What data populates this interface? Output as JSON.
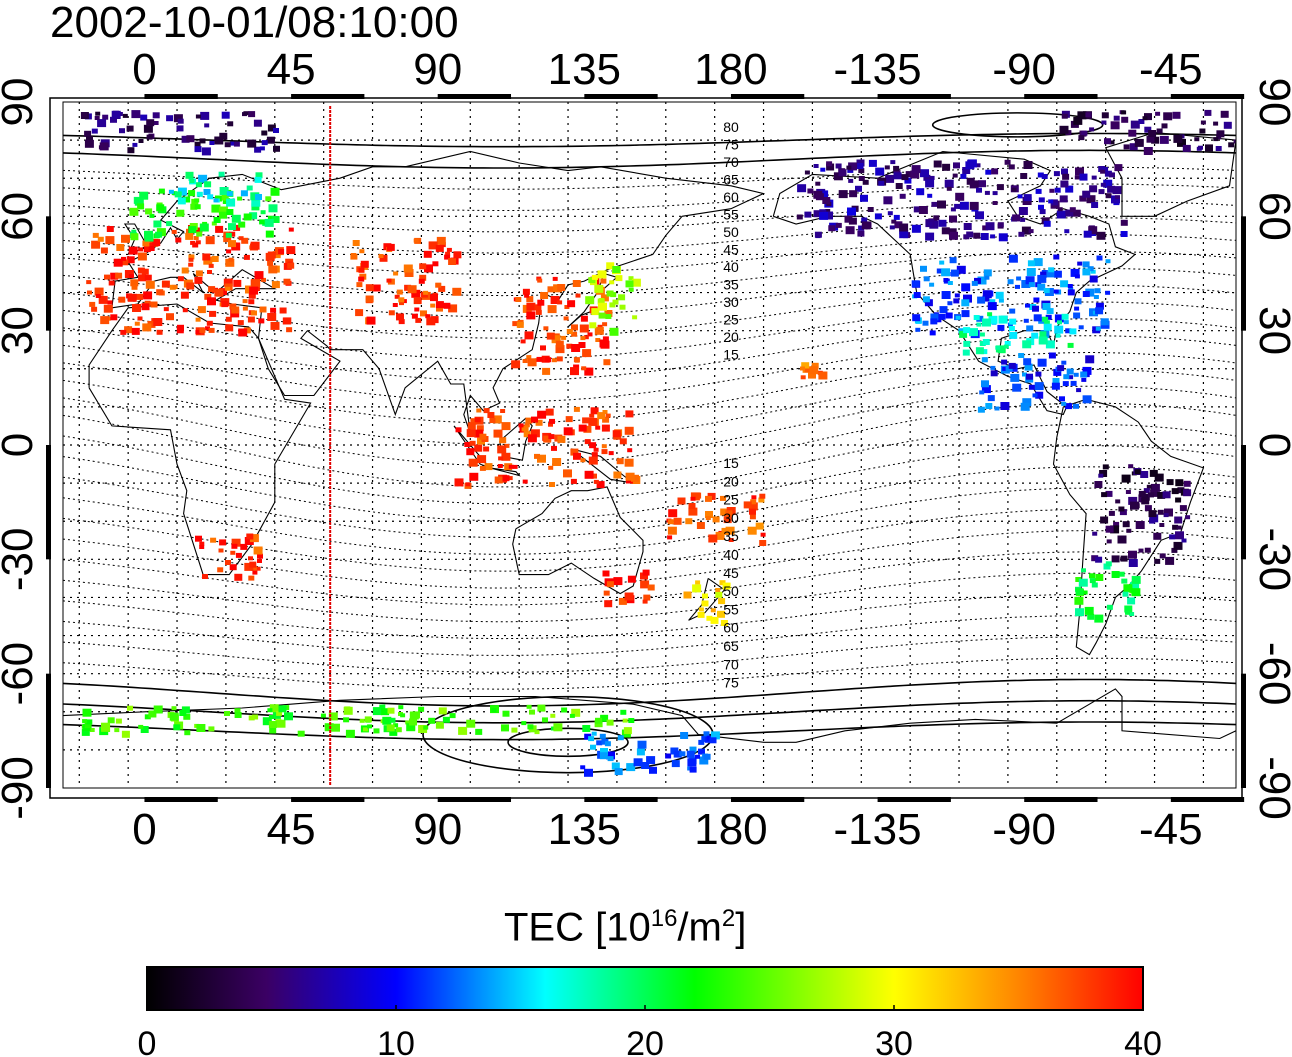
{
  "title": "2002-10-01/08:10:00",
  "map": {
    "lon_range": [
      -25,
      335
    ],
    "lat_range": [
      -90,
      90
    ],
    "top_lon_ticks": [
      {
        "lon": 0,
        "label": "0"
      },
      {
        "lon": 45,
        "label": "45"
      },
      {
        "lon": 90,
        "label": "90"
      },
      {
        "lon": 135,
        "label": "135"
      },
      {
        "lon": 180,
        "label": "180"
      },
      {
        "lon": 225,
        "label": "-135"
      },
      {
        "lon": 270,
        "label": "-90"
      },
      {
        "lon": 315,
        "label": "-45"
      }
    ],
    "bottom_lon_ticks": [
      {
        "lon": 0,
        "label": "0"
      },
      {
        "lon": 45,
        "label": "45"
      },
      {
        "lon": 90,
        "label": "90"
      },
      {
        "lon": 135,
        "label": "135"
      },
      {
        "lon": 180,
        "label": "180"
      },
      {
        "lon": 225,
        "label": "-135"
      },
      {
        "lon": 270,
        "label": "-90"
      },
      {
        "lon": 315,
        "label": "-45"
      }
    ],
    "lat_ticks": [
      {
        "lat": 90,
        "label": "90"
      },
      {
        "lat": 60,
        "label": "60"
      },
      {
        "lat": 30,
        "label": "30"
      },
      {
        "lat": 0,
        "label": "0"
      },
      {
        "lat": -30,
        "label": "-30"
      },
      {
        "lat": -60,
        "label": "-60"
      },
      {
        "lat": -90,
        "label": "-90"
      }
    ],
    "terminator_lon": 57,
    "contour_labels_north": [
      "80",
      "75",
      "70",
      "65",
      "60",
      "55",
      "50",
      "45",
      "40",
      "35",
      "30",
      "25",
      "20",
      "15"
    ],
    "contour_labels_south": [
      "15",
      "20",
      "25",
      "30",
      "35",
      "40",
      "45",
      "50",
      "55",
      "60",
      "65",
      "70",
      "75"
    ],
    "tec_regions": [
      {
        "name": "europe",
        "lon": [
          -18,
          45
        ],
        "lat": [
          30,
          58
        ],
        "tec": 38
      },
      {
        "name": "europe-north-fringe",
        "lon": [
          -5,
          40
        ],
        "lat": [
          55,
          68
        ],
        "tec": 22
      },
      {
        "name": "scandinavia",
        "lon": [
          5,
          35
        ],
        "lat": [
          64,
          72
        ],
        "tec": 17
      },
      {
        "name": "middle-east",
        "lon": [
          62,
          95
        ],
        "lat": [
          33,
          55
        ],
        "tec": 38
      },
      {
        "name": "asia-east",
        "lon": [
          112,
          142
        ],
        "lat": [
          20,
          45
        ],
        "tec": 38
      },
      {
        "name": "japan",
        "lon": [
          135,
          150
        ],
        "lat": [
          30,
          48
        ],
        "tec": 27
      },
      {
        "name": "indonesia",
        "lon": [
          95,
          150
        ],
        "lat": [
          -10,
          10
        ],
        "tec": 38
      },
      {
        "name": "africa-south",
        "lon": [
          15,
          35
        ],
        "lat": [
          -35,
          -22
        ],
        "tec": 38
      },
      {
        "name": "australia-se",
        "lon": [
          140,
          155
        ],
        "lat": [
          -42,
          -32
        ],
        "tec": 38
      },
      {
        "name": "new-zealand",
        "lon": [
          165,
          178
        ],
        "lat": [
          -47,
          -35
        ],
        "tec": 31
      },
      {
        "name": "pacific-islands",
        "lon": [
          160,
          190
        ],
        "lat": [
          -25,
          -12
        ],
        "tec": 37
      },
      {
        "name": "hawaii",
        "lon": [
          201,
          207
        ],
        "lat": [
          18,
          23
        ],
        "tec": 36
      },
      {
        "name": "alaska-canada",
        "lon": [
          200,
          300
        ],
        "lat": [
          55,
          75
        ],
        "tec": 6
      },
      {
        "name": "north-america",
        "lon": [
          235,
          295
        ],
        "lat": [
          30,
          50
        ],
        "tec": 12
      },
      {
        "name": "usa-south",
        "lon": [
          250,
          285
        ],
        "lat": [
          25,
          35
        ],
        "tec": 18
      },
      {
        "name": "central-america",
        "lon": [
          255,
          290
        ],
        "lat": [
          10,
          25
        ],
        "tec": 11
      },
      {
        "name": "south-america-east",
        "lon": [
          290,
          320
        ],
        "lat": [
          -30,
          -5
        ],
        "tec": 4
      },
      {
        "name": "south-america-south",
        "lon": [
          285,
          305
        ],
        "lat": [
          -45,
          -30
        ],
        "tec": 21
      },
      {
        "name": "antarctic-coast",
        "lon": [
          -20,
          150
        ],
        "lat": [
          -75,
          -68
        ],
        "tec": 24
      },
      {
        "name": "antarctic-pacific",
        "lon": [
          130,
          175
        ],
        "lat": [
          -85,
          -75
        ],
        "tec": 12
      },
      {
        "name": "arctic",
        "lon": [
          -20,
          40
        ],
        "lat": [
          78,
          88
        ],
        "tec": 5
      },
      {
        "name": "arctic-west",
        "lon": [
          280,
          335
        ],
        "lat": [
          78,
          88
        ],
        "tec": 4
      }
    ]
  },
  "colorbar": {
    "title": "TEC  [10",
    "sup1": "16",
    "unit_mid": "/m",
    "sup2": "2",
    "unit_end": "]",
    "min": 0,
    "max": 40,
    "ticks": [
      {
        "value": 0,
        "label": "0"
      },
      {
        "value": 10,
        "label": "10"
      },
      {
        "value": 20,
        "label": "20"
      },
      {
        "value": 30,
        "label": "30"
      },
      {
        "value": 40,
        "label": "40"
      }
    ],
    "stops": [
      "#000000",
      "#4b0082",
      "#0000ff",
      "#00ffff",
      "#00ff00",
      "#ffff00",
      "#ff0000"
    ]
  }
}
